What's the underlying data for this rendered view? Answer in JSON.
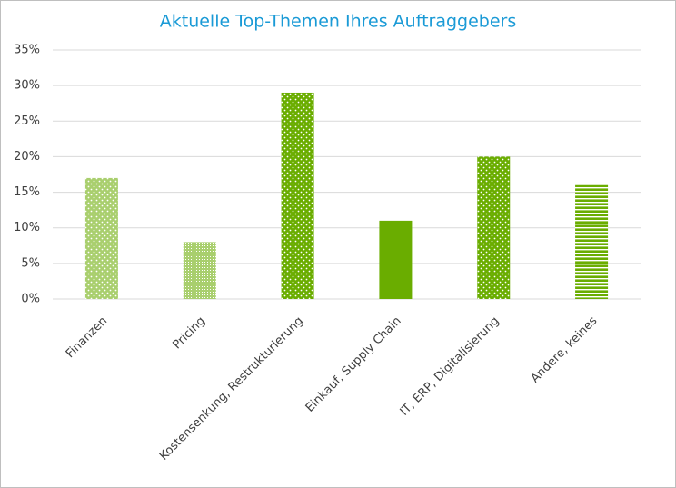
{
  "chart_data": {
    "type": "bar",
    "title": "Aktuelle Top-Themen Ihres Auftraggebers",
    "categories": [
      "Finanzen",
      "Pricing",
      "Kostensenkung, Restrukturierung",
      "Einkauf, Supply Chain",
      "IT, ERP, Digitalisierung",
      "Andere, keines"
    ],
    "values": [
      17,
      8,
      29,
      11,
      20,
      16
    ],
    "colors": [
      "#a9cf6e",
      "#a9cf6e",
      "#6aad00",
      "#6aad00",
      "#6aad00",
      "#6aad00"
    ],
    "patterns": [
      "dots",
      "fine",
      "dots",
      "solid",
      "dots",
      "stripes"
    ],
    "ylim": [
      0,
      35
    ],
    "yticks": [
      {
        "value": 0,
        "label": "0%"
      },
      {
        "value": 5,
        "label": "5%"
      },
      {
        "value": 10,
        "label": "10%"
      },
      {
        "value": 15,
        "label": "15%"
      },
      {
        "value": 20,
        "label": "20%"
      },
      {
        "value": 25,
        "label": "25%"
      },
      {
        "value": 30,
        "label": "30%"
      },
      {
        "value": 35,
        "label": "35%"
      }
    ],
    "grid": true
  }
}
